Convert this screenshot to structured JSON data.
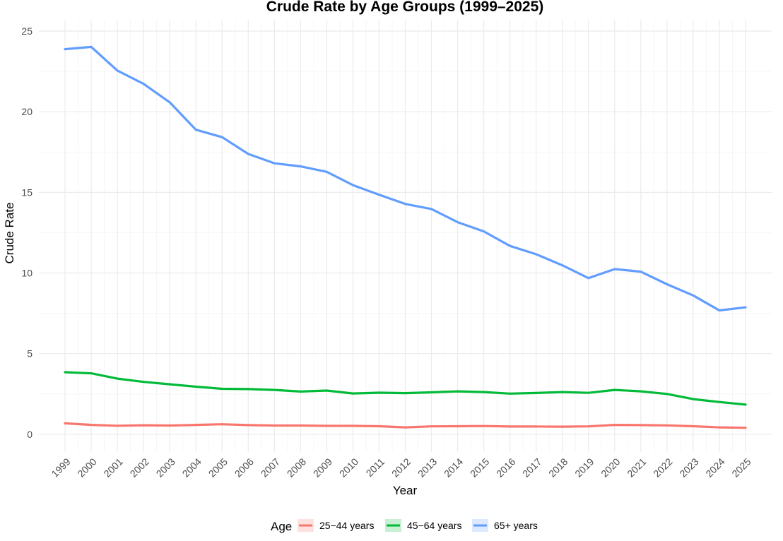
{
  "chart_data": {
    "type": "line",
    "title": "Crude Rate by Age Groups (1999–2025)",
    "xlabel": "Year",
    "ylabel": "Crude Rate",
    "x": [
      1999,
      2000,
      2001,
      2002,
      2003,
      2004,
      2005,
      2006,
      2007,
      2008,
      2009,
      2010,
      2011,
      2012,
      2013,
      2014,
      2015,
      2016,
      2017,
      2018,
      2019,
      2020,
      2021,
      2022,
      2023,
      2024,
      2025
    ],
    "x_tick_labels": [
      "1999",
      "2000",
      "2001",
      "2002",
      "2003",
      "2004",
      "2005",
      "2006",
      "2007",
      "2008",
      "2009",
      "2010",
      "2011",
      "2012",
      "2013",
      "2014",
      "2015",
      "2016",
      "2017",
      "2018",
      "2019",
      "2020",
      "2021",
      "2022",
      "2023",
      "2024",
      "2025"
    ],
    "y_ticks": [
      0,
      5,
      10,
      15,
      20,
      25
    ],
    "y_tick_labels": [
      "0",
      "5",
      "10",
      "15",
      "20",
      "25"
    ],
    "ylim": [
      -1.1,
      25.7
    ],
    "grid": true,
    "legend": {
      "title": "Age",
      "placement": "bottom"
    },
    "series": [
      {
        "name": "25−44 years",
        "color": "#f8766d",
        "values": [
          0.68,
          0.58,
          0.53,
          0.56,
          0.54,
          0.58,
          0.62,
          0.57,
          0.54,
          0.54,
          0.52,
          0.52,
          0.5,
          0.43,
          0.49,
          0.5,
          0.51,
          0.48,
          0.48,
          0.47,
          0.49,
          0.58,
          0.57,
          0.55,
          0.5,
          0.43,
          0.4
        ]
      },
      {
        "name": "45−64 years",
        "color": "#00ba38",
        "values": [
          3.85,
          3.78,
          3.45,
          3.25,
          3.1,
          2.95,
          2.82,
          2.8,
          2.75,
          2.65,
          2.71,
          2.53,
          2.58,
          2.55,
          2.6,
          2.66,
          2.62,
          2.52,
          2.56,
          2.62,
          2.57,
          2.75,
          2.66,
          2.5,
          2.18,
          2.0,
          1.84
        ]
      },
      {
        "name": "65+ years",
        "color": "#619cff",
        "values": [
          23.88,
          24.02,
          22.55,
          21.73,
          20.58,
          18.88,
          18.42,
          17.38,
          16.8,
          16.61,
          16.27,
          15.45,
          14.85,
          14.28,
          13.97,
          13.15,
          12.58,
          11.68,
          11.16,
          10.48,
          9.68,
          10.24,
          10.08,
          9.3,
          8.61,
          7.68,
          7.87
        ]
      }
    ]
  }
}
